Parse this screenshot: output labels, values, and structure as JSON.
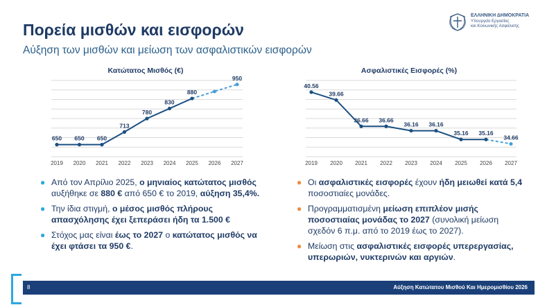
{
  "header": {
    "title": "Πορεία μισθών και εισφορών",
    "subtitle": "Αύξηση των μισθών και μείωση των ασφαλιστικών εισφορών"
  },
  "logo": {
    "line1": "ΕΛΛΗΝΙΚΗ ΔΗΜΟΚΡΑΤΙΑ",
    "line2": "Υπουργείο Εργασίας",
    "line3": "και Κοινωνικής Ασφάλισης"
  },
  "colors": {
    "line": "#1b4f82",
    "dashed": "#4a9fd8",
    "grid": "#d9d9d9",
    "bullet_left": "#2aa8e0",
    "bullet_right": "#f08a3c",
    "footer": "#1b4079"
  },
  "chart_data": [
    {
      "type": "line",
      "title": "Κατώτατος Μισθός (€)",
      "categories": [
        "2019",
        "2020",
        "2021",
        "2022",
        "2023",
        "2024",
        "2025",
        "2026",
        "2027"
      ],
      "values": [
        650,
        650,
        650,
        713,
        780,
        830,
        880,
        915,
        950
      ],
      "labels": [
        "650",
        "650",
        "650",
        "713",
        "780",
        "830",
        "880",
        "",
        "950"
      ],
      "solid_until_index": 6,
      "ylim": [
        590,
        970
      ],
      "gridlines": 8
    },
    {
      "type": "line",
      "title": "Ασφαλιστικές Εισφορές (%)",
      "categories": [
        "2019",
        "2020",
        "2021",
        "2022",
        "2023",
        "2024",
        "2025",
        "2026",
        "2027"
      ],
      "values": [
        40.56,
        39.66,
        36.66,
        36.66,
        36.16,
        36.16,
        35.16,
        35.16,
        34.66
      ],
      "labels": [
        "40.56",
        "39.66",
        "36.66",
        "36.66",
        "36.16",
        "36.16",
        "35.16",
        "35.16",
        "34.66"
      ],
      "solid_until_index": 7,
      "ylim": [
        33.2,
        41.9
      ],
      "gridlines": 8
    }
  ],
  "left_bullets": [
    {
      "segments": [
        [
          "Από τον Απρίλιο 2025, ",
          false
        ],
        [
          "ο μηνιαίος κατώτατος μισθός",
          true
        ],
        [
          " αυξήθηκε σε ",
          false
        ],
        [
          "880 €",
          true
        ],
        [
          " από 650 € το 2019, ",
          false
        ],
        [
          "αύξηση 35,4%.",
          true
        ]
      ]
    },
    {
      "segments": [
        [
          "Την ίδια στιγμή, ",
          false
        ],
        [
          "ο μέσος μισθός πλήρους απασχόλησης έχει ξεπεράσει ήδη τα 1.500 €",
          true
        ]
      ]
    },
    {
      "segments": [
        [
          "Στόχος μας είναι ",
          false
        ],
        [
          "έως το 2027",
          true
        ],
        [
          " ο ",
          false
        ],
        [
          "κατώτατος μισθός να έχει φτάσει τα 950 €",
          true
        ],
        [
          ".",
          false
        ]
      ]
    }
  ],
  "right_bullets": [
    {
      "segments": [
        [
          "Οι ",
          false
        ],
        [
          "ασφαλιστικές εισφορές",
          true
        ],
        [
          " έχουν ",
          false
        ],
        [
          "ήδη μειωθεί κατά 5,4",
          true
        ],
        [
          " ποσοστιαίες μονάδες.",
          false
        ]
      ]
    },
    {
      "segments": [
        [
          "Προγραμματισμένη ",
          false
        ],
        [
          "μείωση επιπλέον μισής ποσοστιαίας μονάδας το 2027",
          true
        ],
        [
          " (συνολική μείωση σχεδόν 6 π.μ. από το 2019 έως το 2027).",
          false
        ]
      ]
    },
    {
      "segments": [
        [
          "Μείωση στις ",
          false
        ],
        [
          "ασφαλιστικές εισφορές υπερεργασίας, υπερωριών, νυκτερινών και αργιών",
          true
        ],
        [
          ".",
          false
        ]
      ]
    }
  ],
  "footer": {
    "page": "8",
    "text": "Αύξηση Κατώτατου Μισθού Και Ημερομισθίου 2026"
  }
}
